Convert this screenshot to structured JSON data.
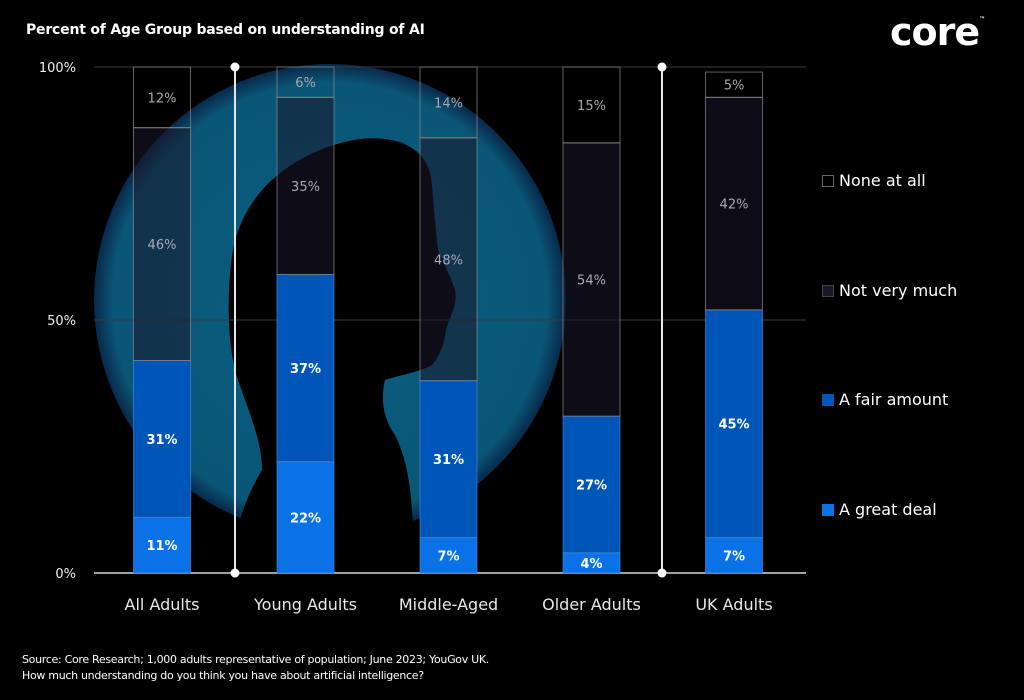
{
  "header": {
    "title": "Percent of Age Group based on understanding of AI",
    "logo": "core"
  },
  "footer": {
    "source": "Source: Core Research; 1,000 adults representative of population; June 2023; YouGov UK.",
    "question": "How much understanding do you think you have about artificial intelligence?"
  },
  "colors": {
    "background": "#000000",
    "none_at_all": "#000000",
    "not_very_much": "#1a1628",
    "a_fair_amount": "#0055b8",
    "a_great_deal": "#0a72e6",
    "glow_circle": "#0a5a7a",
    "gridline": "#3a3a3a",
    "divider": "#e6e6e6"
  },
  "chart_data": {
    "type": "bar",
    "stacked": true,
    "title": "Percent of Age Group based on understanding of AI",
    "xlabel": "",
    "ylabel": "",
    "ylim": [
      0,
      100
    ],
    "y_ticks": [
      "0%",
      "50%",
      "100%"
    ],
    "y_tick_values": [
      0,
      50,
      100
    ],
    "categories": [
      "All Adults",
      "Young Adults",
      "Middle-Aged",
      "Older Adults",
      "UK Adults"
    ],
    "series": [
      {
        "name": "A great deal",
        "values": [
          11,
          22,
          7,
          4,
          7
        ],
        "labels": [
          "11%",
          "22%",
          "7%",
          "4%",
          "7%"
        ]
      },
      {
        "name": "A fair amount",
        "values": [
          31,
          37,
          31,
          27,
          45
        ],
        "labels": [
          "31%",
          "37%",
          "31%",
          "27%",
          "45%"
        ]
      },
      {
        "name": "Not very much",
        "values": [
          46,
          35,
          48,
          54,
          42
        ],
        "labels": [
          "46%",
          "35%",
          "48%",
          "54%",
          "42%"
        ]
      },
      {
        "name": "None at all",
        "values": [
          12,
          6,
          14,
          15,
          5
        ],
        "labels": [
          "12%",
          "6%",
          "14%",
          "15%",
          "5%"
        ]
      }
    ],
    "legend": {
      "placement": "right",
      "entries": [
        "None at all",
        "Not very much",
        "A fair amount",
        "A great deal"
      ]
    },
    "grid": true
  }
}
